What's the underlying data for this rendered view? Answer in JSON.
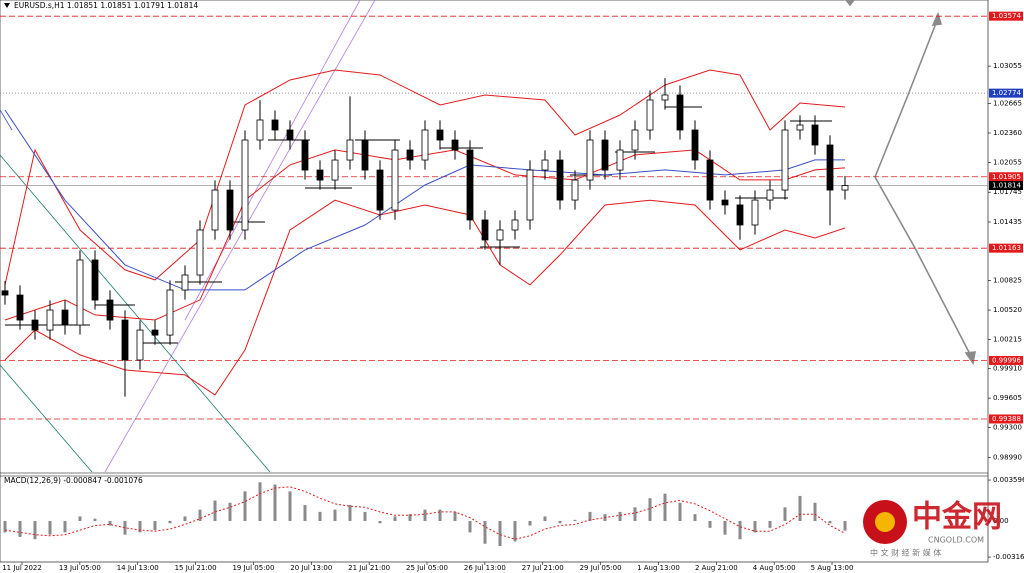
{
  "chart_data": {
    "type": "candlestick",
    "header": "EURUSD.s,H1  1.01851 1.01851 1.01791 1.01814",
    "open": [
      1.0072,
      1.00676,
      1.00416,
      1.00312,
      1.0052,
      1.00364,
      1.0104,
      1.00624,
      1.00416,
      1.00001,
      1.00312,
      1.0026,
      1.00728,
      1.00884,
      1.01352,
      1.01767,
      1.01352,
      1.02287,
      1.02495,
      1.02391,
      1.02287,
      1.01975,
      1.01871,
      1.02079,
      1.02287,
      1.01975,
      1.01559,
      1.02183,
      1.02079,
      1.02391,
      1.02287,
      1.02183,
      1.01456,
      1.01248,
      1.01352,
      1.01456,
      1.01975,
      1.02079,
      1.01663,
      1.01871,
      1.02287,
      1.01975,
      1.02183,
      1.02391,
      1.02703,
      1.02755,
      1.02391,
      1.02079,
      1.01663,
      1.01612,
      1.01404,
      1.01663,
      1.01767,
      1.02391,
      1.02443,
      1.02235,
      1.01767
    ],
    "high": [
      1.0082,
      1.00776,
      1.00516,
      1.0062,
      1.0062,
      1.0114,
      1.0114,
      1.00724,
      1.00516,
      1.00412,
      1.00412,
      1.00828,
      1.00984,
      1.01452,
      1.01867,
      1.01867,
      1.02387,
      1.027,
      1.02595,
      1.02491,
      1.02387,
      1.02075,
      1.02179,
      1.0274,
      1.02387,
      1.02075,
      1.02283,
      1.02283,
      1.02491,
      1.02491,
      1.02387,
      1.02283,
      1.01556,
      1.01452,
      1.01556,
      1.02075,
      1.02179,
      1.02179,
      1.01971,
      1.02387,
      1.02387,
      1.02283,
      1.02491,
      1.02803,
      1.0293,
      1.02855,
      1.02491,
      1.02179,
      1.01763,
      1.01712,
      1.01763,
      1.01867,
      1.02491,
      1.02543,
      1.02543,
      1.02335,
      1.01914
    ],
    "low": [
      1.00576,
      1.00316,
      1.00212,
      1.00212,
      1.00264,
      1.00264,
      1.00524,
      1.00316,
      0.9962,
      0.99901,
      1.0016,
      1.0016,
      1.00628,
      1.00784,
      1.01252,
      1.01252,
      1.01252,
      1.02187,
      1.02291,
      1.02187,
      1.01875,
      1.01771,
      1.01771,
      1.01979,
      1.01875,
      1.01459,
      1.01459,
      1.01979,
      1.01979,
      1.02187,
      1.02083,
      1.01356,
      1.01148,
      1.0099,
      1.01252,
      1.01356,
      1.01875,
      1.01563,
      1.01563,
      1.01771,
      1.01875,
      1.01875,
      1.02083,
      1.02291,
      1.02603,
      1.02291,
      1.01979,
      1.01563,
      1.01512,
      1.0125,
      1.01304,
      1.01563,
      1.01667,
      1.02291,
      1.02135,
      1.014,
      1.01667
    ],
    "close": [
      1.00676,
      1.00416,
      1.00312,
      1.0052,
      1.00364,
      1.0104,
      1.00624,
      1.00416,
      1.00001,
      1.00312,
      1.0026,
      1.00728,
      1.00884,
      1.01352,
      1.01767,
      1.01352,
      1.02287,
      1.02495,
      1.02391,
      1.02287,
      1.01975,
      1.01871,
      1.02079,
      1.02287,
      1.01975,
      1.01559,
      1.02183,
      1.02079,
      1.02391,
      1.02287,
      1.02183,
      1.01456,
      1.01248,
      1.01352,
      1.01456,
      1.01975,
      1.02079,
      1.01663,
      1.01871,
      1.02287,
      1.01975,
      1.02183,
      1.02391,
      1.02703,
      1.02755,
      1.02391,
      1.02079,
      1.01663,
      1.01612,
      1.01404,
      1.01663,
      1.01767,
      1.02391,
      1.02443,
      1.02235,
      1.01767,
      1.01814
    ],
    "ylim": [
      0.98837,
      1.03742
    ],
    "yticks": [
      1.03055,
      {
        "value": 1.0236,
        "label": "1.02360"
      },
      1.02665,
      1.02055,
      1.01745,
      1.01435,
      1.00825,
      {
        "value": 1.0052,
        "label": "1.00520"
      },
      1.00215,
      {
        "value": 0.9991,
        "label": "0.99910"
      },
      0.99605,
      {
        "value": 0.993,
        "label": "0.99300"
      },
      {
        "value": 0.9899,
        "label": "0.98990"
      }
    ],
    "x_labels": [
      "11 Jul 2022",
      "13 Jul 05:00",
      "14 Jul 13:00",
      "15 Jul 21:00",
      "19 Jul 05:00",
      "20 Jul 13:00",
      "21 Jul 21:00",
      "25 Jul 05:00",
      "26 Jul 13:00",
      "27 Jul 21:00",
      "29 Jul 05:00",
      "1 Aug 13:00",
      "2 Aug 21:00",
      "4 Aug 05:00",
      "5 Aug 13:00"
    ],
    "levels": [
      {
        "value": 1.03574,
        "color": "#e31a1c",
        "style": "dashed"
      },
      {
        "value": 1.02774,
        "color": "#1f3fbf",
        "style": "dotted"
      },
      {
        "value": 1.01905,
        "color": "#e31a1c",
        "style": "dashed"
      },
      {
        "value": 1.01814,
        "color": "#000000",
        "style": "solid"
      },
      {
        "value": 1.01163,
        "color": "#e31a1c",
        "style": "dashed"
      },
      {
        "value": 0.99996,
        "color": "#e31a1c",
        "style": "dashed"
      },
      {
        "value": 0.99388,
        "color": "#e31a1c",
        "style": "dashed"
      }
    ],
    "bands": [
      {
        "color": "#e31a1c",
        "x": [
          0,
          2,
          5,
          8,
          10,
          13,
          16,
          19,
          22,
          25,
          29,
          32,
          36,
          38,
          41,
          44,
          47,
          49,
          51,
          53,
          56
        ],
        "values": [
          1.00781,
          1.02183,
          1.01352,
          1.00937,
          1.00833,
          1.01248,
          1.02651,
          1.02911,
          1.03015,
          1.02963,
          1.02651,
          1.02755,
          1.02703,
          1.02339,
          1.02547,
          1.02859,
          1.03015,
          1.02963,
          1.02391,
          1.02672,
          1.0263
        ]
      },
      {
        "color": "#e31a1c",
        "x": [
          0,
          4,
          6,
          10,
          13,
          16,
          19,
          22,
          26,
          30,
          34,
          38,
          42,
          46,
          49,
          52,
          54,
          56
        ],
        "values": [
          1.00417,
          1.00625,
          1.0047,
          1.00417,
          1.00625,
          1.01662,
          1.02028,
          1.02184,
          1.0208,
          1.02184,
          1.01924,
          1.01872,
          1.02132,
          1.02184,
          1.01872,
          1.01872,
          1.01976,
          1.01997
        ]
      },
      {
        "color": "#e31a1c",
        "x": [
          0,
          2,
          5,
          8,
          12,
          14,
          16,
          19,
          22,
          25,
          28,
          31,
          33,
          35,
          37,
          40,
          43,
          46,
          49,
          52,
          54,
          56
        ],
        "values": [
          1.00002,
          1.00313,
          1.00054,
          0.99898,
          0.99846,
          0.99638,
          1.00106,
          1.01352,
          1.01662,
          1.01508,
          1.01612,
          1.01508,
          1.00989,
          1.00781,
          1.01093,
          1.01612,
          1.01662,
          1.01612,
          1.01145,
          1.01352,
          1.01269,
          1.01373
        ]
      },
      {
        "color": "#3a4fc8",
        "x": [
          0,
          4,
          8,
          12,
          16,
          20,
          24,
          28,
          31,
          35,
          40,
          44,
          48,
          52,
          54,
          56
        ],
        "values": [
          1.02599,
          1.01662,
          1.00989,
          1.00729,
          1.00729,
          1.01145,
          1.01404,
          1.0182,
          1.02028,
          1.01976,
          1.01924,
          1.01976,
          1.01924,
          1.01976,
          1.0208,
          1.0208
        ]
      }
    ],
    "macd": {
      "label": "MACD(12,26,9) -0.000847 -0.001076",
      "histogram": [
        -0.001,
        -0.0014,
        -0.0016,
        -0.0012,
        -0.001,
        0.0004,
        0.0002,
        -0.0004,
        -0.0012,
        -0.001,
        -0.0008,
        -0.0002,
        0.0004,
        0.001,
        0.0018,
        0.0016,
        0.0026,
        0.0034,
        0.0032,
        0.0026,
        0.0014,
        0.0008,
        0.001,
        0.0014,
        0.0008,
        -0.0002,
        0.0004,
        0.0006,
        0.001,
        0.001,
        0.0008,
        -0.001,
        -0.002,
        -0.0022,
        -0.0018,
        -0.0004,
        0.0004,
        -0.0002,
        0.0001,
        0.0008,
        0.0006,
        0.0008,
        0.0012,
        0.002,
        0.0024,
        0.0016,
        0.0006,
        -0.0006,
        -0.0012,
        -0.0016,
        -0.001,
        -0.0006,
        0.0012,
        0.0022,
        0.0016,
        -0.0002,
        -0.000847
      ],
      "signal": [
        -0.0008,
        -0.001,
        -0.0012,
        -0.0013,
        -0.0012,
        -0.0008,
        -0.0004,
        -0.0003,
        -0.0006,
        -0.0008,
        -0.0009,
        -0.0007,
        -0.0003,
        0.0002,
        0.0008,
        0.0012,
        0.0017,
        0.0024,
        0.0029,
        0.003,
        0.0026,
        0.002,
        0.0015,
        0.0013,
        0.0012,
        0.0008,
        0.0005,
        0.0005,
        0.0006,
        0.0008,
        0.0008,
        0.0003,
        -0.0005,
        -0.0012,
        -0.0016,
        -0.0013,
        -0.0007,
        -0.0004,
        -0.0003,
        0.0001,
        0.0003,
        0.0005,
        0.0007,
        0.0011,
        0.0016,
        0.0018,
        0.0015,
        0.0009,
        0.0002,
        -0.0005,
        -0.0009,
        -0.0009,
        -0.0003,
        0.0006,
        0.0006,
        -0.0004,
        -0.001076
      ],
      "bar_color": "#8a8a8a",
      "signal_color": "#e31a1c",
      "ylim": [
        -0.0036,
        0.00395
      ],
      "yticks": [
        0.003596,
        {
          "value": 0,
          "label": "0.00"
        },
        -0.003168
      ]
    }
  },
  "watermark": {
    "brand": "中金网",
    "site": "CNGOLD.COM",
    "slogan": "中 文 财 经 新 媒 体"
  }
}
